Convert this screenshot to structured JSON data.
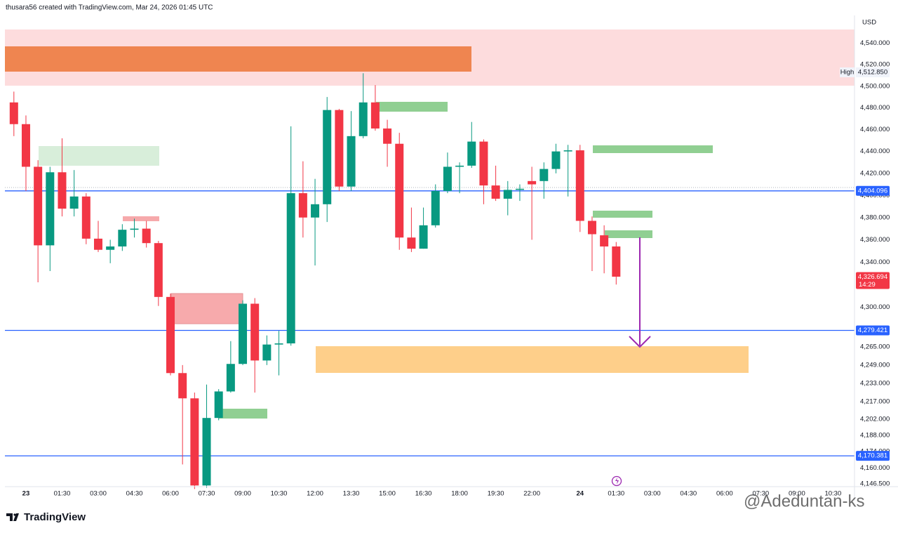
{
  "header": "thusara56 created with TradingView.com, Mar 24, 2026 01:45 UTC",
  "brand": "TradingView",
  "watermark": "@Adeduntan-ks",
  "chart_data": {
    "type": "candlestick",
    "currency": "USD",
    "up_color": "#089981",
    "down_color": "#f23645",
    "log_scale": true,
    "grid": false,
    "ylim": [
      4144,
      4566
    ],
    "yticks": [
      {
        "value": 4540,
        "label": "4,540.000"
      },
      {
        "value": 4520,
        "label": "4,520.000"
      },
      {
        "value": 4500,
        "label": "4,500.000"
      },
      {
        "value": 4480,
        "label": "4,480.000"
      },
      {
        "value": 4460,
        "label": "4,460.000"
      },
      {
        "value": 4440,
        "label": "4,440.000"
      },
      {
        "value": 4420,
        "label": "4,420.000"
      },
      {
        "value": 4400,
        "label": "4,400.000"
      },
      {
        "value": 4380,
        "label": "4,380.000"
      },
      {
        "value": 4360,
        "label": "4,360.000"
      },
      {
        "value": 4340,
        "label": "4,340.000"
      },
      {
        "value": 4300,
        "label": "4,300.000"
      },
      {
        "value": 4265,
        "label": "4,265.000"
      },
      {
        "value": 4249,
        "label": "4,249.000"
      },
      {
        "value": 4233,
        "label": "4,233.000"
      },
      {
        "value": 4217,
        "label": "4,217.000"
      },
      {
        "value": 4202,
        "label": "4,202.000"
      },
      {
        "value": 4188,
        "label": "4,188.000"
      },
      {
        "value": 4174,
        "label": "4,174.000"
      },
      {
        "value": 4160,
        "label": "4,160.000"
      },
      {
        "value": 4146.5,
        "label": "4,146.500"
      }
    ],
    "categories": [
      null,
      "23",
      null,
      null,
      "01:30",
      null,
      null,
      "03:00",
      null,
      null,
      "04:30",
      null,
      null,
      "06:00",
      null,
      null,
      "07:30",
      null,
      null,
      "09:00",
      null,
      null,
      "10:30",
      null,
      null,
      "12:00",
      null,
      null,
      "13:30",
      null,
      null,
      "15:00",
      null,
      null,
      "16:30",
      null,
      null,
      "18:00",
      null,
      null,
      "19:30",
      null,
      null,
      "22:00",
      null,
      null,
      null,
      "24",
      null,
      null,
      "01:30",
      null,
      null,
      "03:00",
      null,
      null,
      "04:30",
      null,
      null,
      "06:00",
      null,
      null,
      "07:30",
      null,
      null,
      "09:00",
      null,
      null,
      "10:30",
      null
    ],
    "open": [
      4485,
      4465,
      4426,
      4355,
      4421,
      4388,
      4399,
      4361,
      4351,
      4354,
      4369,
      4370,
      4357,
      4309,
      4242,
      4220,
      4145,
      4203,
      4226,
      4250,
      4303,
      4253,
      4267,
      4268,
      4402,
      4380,
      4392,
      4478,
      4408,
      4454,
      4485,
      4461,
      4447,
      4362,
      4352,
      4373,
      4404,
      4426,
      4427,
      4449,
      4409,
      4397,
      4405,
      4413,
      4413,
      4424,
      4440,
      4441,
      4377,
      4364,
      4354,
      null,
      null,
      null,
      null,
      null,
      null,
      null,
      null,
      null,
      null,
      null,
      null,
      null,
      null,
      null,
      null,
      null,
      null,
      null
    ],
    "high": [
      4495,
      4473,
      4432,
      4426,
      4452,
      4423,
      4402,
      4377,
      4360,
      4374,
      4379,
      4377,
      4359,
      4312,
      4249,
      4225,
      4232,
      4228,
      4270,
      4306,
      4308,
      4275,
      4279,
      4463,
      4431,
      4415,
      4490,
      4479,
      4477,
      4512,
      4501,
      4469,
      4457,
      4389,
      4389,
      4410,
      4439,
      4430,
      4467,
      4451,
      4427,
      4413,
      4410,
      4426,
      4430,
      4447,
      4446,
      4446,
      4381,
      4373,
      4358,
      null,
      null,
      null,
      null,
      null,
      null,
      null,
      null,
      null,
      null,
      null,
      null,
      null,
      null,
      null,
      null,
      null,
      null,
      null
    ],
    "low": [
      4454,
      4404,
      4322,
      4332,
      4381,
      4381,
      4356,
      4349,
      4339,
      4350,
      4362,
      4353,
      4301,
      4240,
      4163,
      4142,
      4143,
      4201,
      4225,
      4249,
      4225,
      4249,
      4240,
      4266,
      4362,
      4337,
      4376,
      4404,
      4404,
      4452,
      4459,
      4426,
      4351,
      4349,
      4352,
      4371,
      4402,
      4402,
      4425,
      4392,
      4395,
      4382,
      4395,
      4360,
      4397,
      4420,
      4399,
      4367,
      4332,
      4330,
      4320,
      null,
      null,
      null,
      null,
      null,
      null,
      null,
      null,
      null,
      null,
      null,
      null,
      null,
      null,
      null,
      null,
      null,
      null,
      null
    ],
    "close": [
      4465,
      4426,
      4355,
      4421,
      4388,
      4399,
      4361,
      4351,
      4354,
      4369,
      4370,
      4357,
      4309,
      4242,
      4220,
      4145,
      4203,
      4226,
      4250,
      4303,
      4253,
      4267,
      4268,
      4402,
      4380,
      4392,
      4478,
      4408,
      4454,
      4485,
      4461,
      4447,
      4362,
      4352,
      4373,
      4404,
      4426,
      4427,
      4449,
      4409,
      4397,
      4405,
      4406,
      4410,
      4424,
      4440,
      4441,
      4377,
      4365,
      4354,
      4327,
      null,
      null,
      null,
      null,
      null,
      null,
      null,
      null,
      null,
      null,
      null,
      null,
      null,
      null,
      null,
      null,
      null,
      null,
      null
    ],
    "price_lines": [
      {
        "value": 4404.096,
        "label": "4,404.096",
        "color": "#2962ff"
      },
      {
        "value": 4279.421,
        "label": "4,279.421",
        "color": "#2962ff"
      },
      {
        "value": 4170.381,
        "label": "4,170.381",
        "color": "#2962ff"
      }
    ],
    "current_price": {
      "value": 4326.694,
      "label": "4,326.694",
      "countdown": "14:29",
      "color": "#f23645"
    },
    "high_marker": {
      "text": "High",
      "value": 4512.85,
      "label": "4,512.850"
    }
  }
}
